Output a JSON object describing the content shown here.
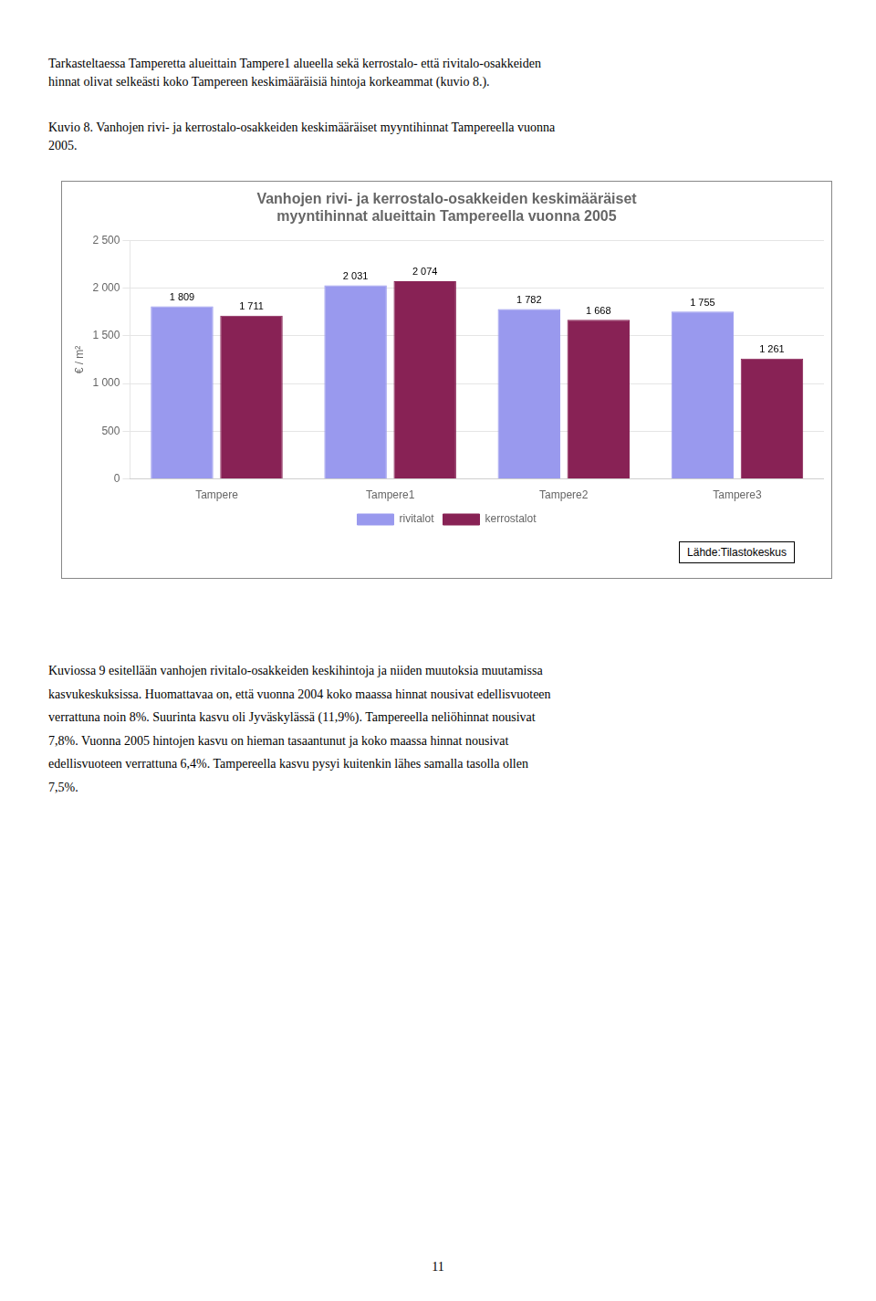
{
  "header_text": [
    "Tarkasteltaessa Tamperetta alueittain Tampere1 alueella sekä kerrostalo- että rivitalo-osakkeiden",
    "hinnat olivat selkeästi koko Tampereen keskimääräisiä hintoja korkeammat (kuvio 8.)."
  ],
  "caption": [
    "Kuvio 8. Vanhojen rivi- ja kerrostalo-osakkeiden keskimääräiset myyntihinnat Tampereella vuonna",
    "2005."
  ],
  "body_text": [
    "Kuviossa 9 esitellään vanhojen rivitalo-osakkeiden keskihintoja ja niiden muutoksia muutamissa",
    "kasvukeskuksissa. Huomattavaa on, että vuonna 2004 koko maassa hinnat nousivat edellisvuoteen",
    "verrattuna noin 8%. Suurinta kasvu oli Jyväskylässä (11,9%). Tampereella neliöhinnat nousivat",
    "7,8%. Vuonna 2005 hintojen kasvu on hieman tasaantunut ja koko maassa hinnat nousivat",
    "edellisvuoteen verrattuna 6,4%. Tampereella kasvu pysyi kuitenkin lähes samalla tasolla ollen",
    "7,5%."
  ],
  "page_number": "11",
  "chart_data": {
    "type": "bar",
    "title": [
      "Vanhojen rivi- ja kerrostalo-osakkeiden keskimääräiset",
      "myyntihinnat alueittain Tampereella vuonna 2005"
    ],
    "ylabel": "€ / m²",
    "categories": [
      "Tampere",
      "Tampere1",
      "Tampere2",
      "Tampere3"
    ],
    "series": [
      {
        "name": "rivitalot",
        "color": "#9999ee",
        "values": [
          1809,
          2031,
          1782,
          1755
        ],
        "value_labels": [
          "1 809",
          "2 031",
          "1 782",
          "1 755"
        ]
      },
      {
        "name": "kerrostalot",
        "color": "#882255",
        "values": [
          1711,
          2074,
          1668,
          1261
        ],
        "value_labels": [
          "1 711",
          "2 074",
          "1 668",
          "1 261"
        ]
      }
    ],
    "ylim": [
      0,
      2500
    ],
    "yticks": [
      0,
      500,
      {
        "value": 1000,
        "label": "1 000"
      },
      {
        "value": 1500,
        "label": "1 500"
      },
      {
        "value": 2000,
        "label": "2 000"
      },
      {
        "value": 2500,
        "label": "2 500"
      }
    ],
    "grid": true,
    "legend": "bottom",
    "data_labels": true,
    "annotations": [
      "Lähde:Tilastokeskus"
    ]
  }
}
